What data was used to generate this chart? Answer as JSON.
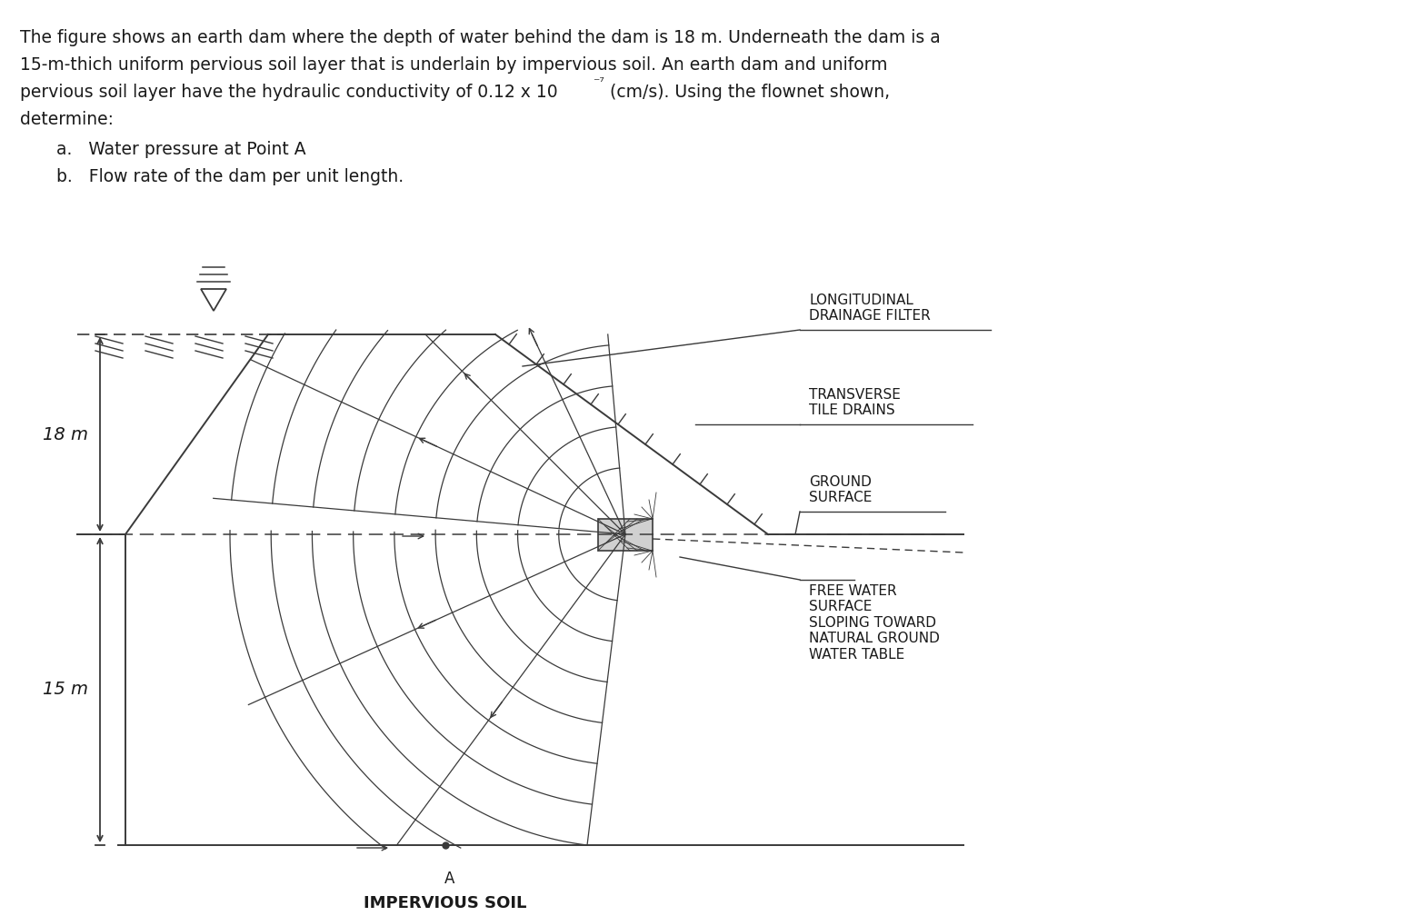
{
  "line_color": "#3a3a3a",
  "bg_color": "#ffffff",
  "text_color": "#1a1a1a",
  "label_18m": "18 m",
  "label_15m": "15 m",
  "label_A": "A",
  "label_impervious": "IMPERVIOUS SOIL",
  "label_longitudinal": "LONGITUDINAL\nDRAINAGE FILTER",
  "label_transverse": "TRANSVERSE\nTILE DRAINS",
  "label_ground": "GROUND\nSURFACE",
  "label_free_water": "FREE WATER\nSURFACE\nSLOPING TOWARD\nNATURAL GROUND\nWATER TABLE",
  "para_line1": "The figure shows an earth dam where the depth of water behind the dam is 18 m. Underneath the dam is a",
  "para_line2": "15-m-thich uniform pervious soil layer that is underlain by impervious soil. An earth dam and uniform",
  "para_line3a": "pervious soil layer have the hydraulic conductivity of 0.12 x 10",
  "para_line3b": " (cm/s). Using the flownet shown,",
  "para_line4": "determine:",
  "sub_a": "a.   Water pressure at Point A",
  "sub_b": "b.   Flow rate of the dam per unit length."
}
